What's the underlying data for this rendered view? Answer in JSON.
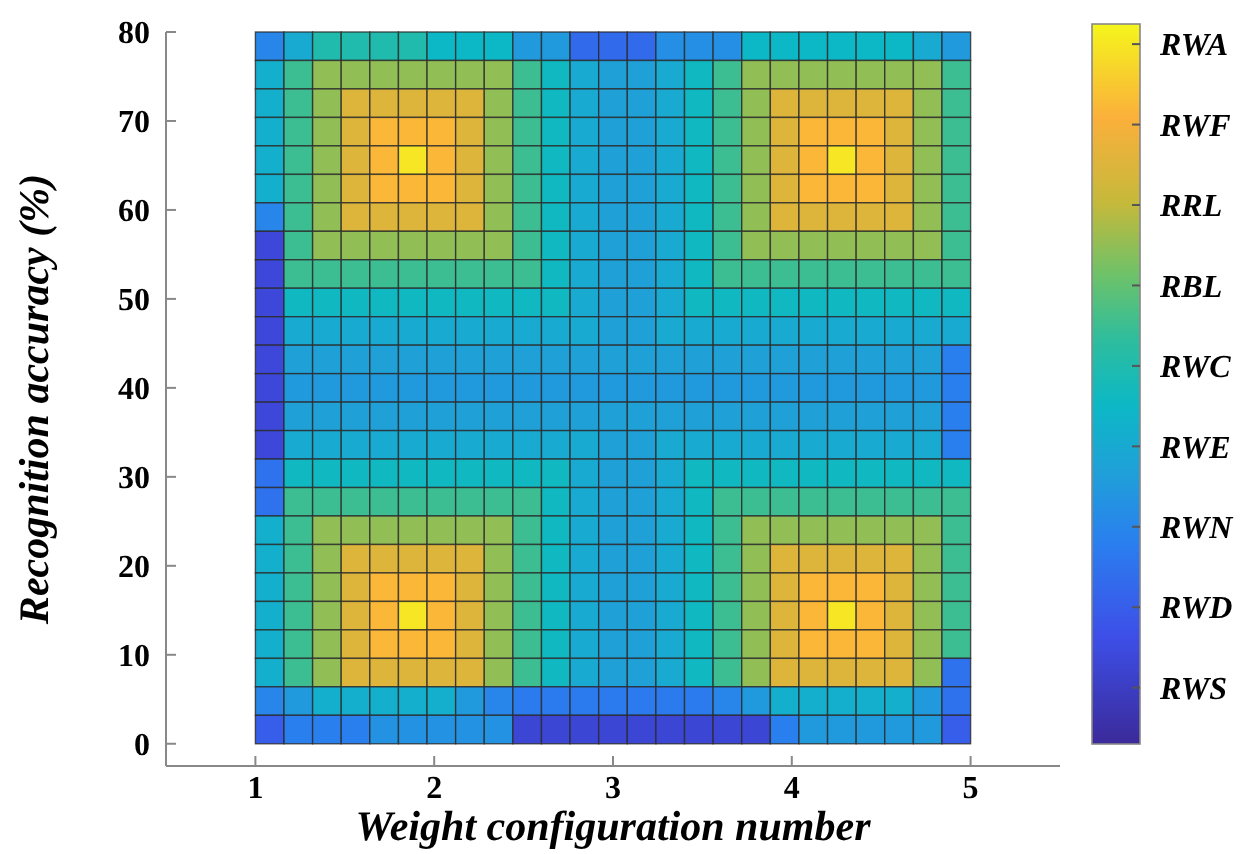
{
  "chart_data": {
    "type": "heatmap",
    "xlabel": "Weight configuration number",
    "ylabel": "Recognition accuracy (%)",
    "x": [
      1.08,
      1.24,
      1.4,
      1.56,
      1.72,
      1.88,
      2.04,
      2.2,
      2.36,
      2.52,
      2.68,
      2.84,
      3.0,
      3.16,
      3.32,
      3.48,
      3.64,
      3.8,
      3.96,
      4.12,
      4.28,
      4.44,
      4.6,
      4.76,
      4.92
    ],
    "y": [
      78.4,
      75.2,
      72.0,
      68.8,
      65.6,
      62.4,
      59.2,
      56.0,
      52.8,
      49.6,
      46.4,
      43.2,
      40.0,
      36.8,
      33.6,
      30.4,
      27.2,
      24.0,
      20.8,
      17.6,
      14.4,
      11.2,
      8.0,
      4.8,
      1.6
    ],
    "xlim": [
      0.5,
      5.5
    ],
    "xticks": [
      1,
      2,
      3,
      4,
      5
    ],
    "ylim": [
      -2.5,
      80
    ],
    "yticks": [
      0,
      10,
      20,
      30,
      40,
      50,
      60,
      70,
      80
    ],
    "clim": [
      0.3,
      9.25
    ],
    "cticks": [
      {
        "value": 1,
        "label": "RWS"
      },
      {
        "value": 2,
        "label": "RWD"
      },
      {
        "value": 3,
        "label": "RWN"
      },
      {
        "value": 4,
        "label": "RWE"
      },
      {
        "value": 5,
        "label": "RWC"
      },
      {
        "value": 6,
        "label": "RBL"
      },
      {
        "value": 7,
        "label": "RRL"
      },
      {
        "value": 8,
        "label": "RWF"
      },
      {
        "value": 9,
        "label": "RWA"
      }
    ],
    "cells": [
      [
        3.0,
        4.0,
        5.0,
        5.0,
        5.0,
        5.0,
        4.5,
        4.5,
        4.5,
        3.5,
        3.5,
        2.3,
        2.3,
        2.3,
        3.2,
        3.2,
        3.2,
        4.5,
        4.5,
        4.5,
        4.5,
        4.5,
        4.5,
        4.0,
        3.5
      ],
      [
        4.2,
        5.5,
        6.5,
        6.5,
        6.5,
        6.5,
        6.5,
        6.5,
        6.5,
        5.5,
        4.6,
        4.0,
        3.7,
        3.7,
        4.0,
        4.6,
        5.5,
        6.5,
        6.5,
        6.5,
        6.5,
        6.5,
        6.5,
        6.5,
        5.5
      ],
      [
        4.2,
        5.5,
        6.5,
        7.5,
        7.5,
        7.5,
        7.5,
        7.5,
        6.5,
        5.5,
        4.6,
        4.0,
        3.7,
        3.7,
        4.0,
        4.6,
        5.5,
        6.5,
        7.5,
        7.5,
        7.5,
        7.5,
        7.5,
        6.5,
        5.5
      ],
      [
        4.2,
        5.5,
        6.5,
        7.5,
        8.2,
        8.2,
        8.2,
        7.5,
        6.5,
        5.5,
        4.6,
        4.0,
        3.7,
        3.7,
        4.0,
        4.6,
        5.5,
        6.5,
        7.5,
        8.2,
        8.2,
        8.2,
        7.5,
        6.5,
        5.5
      ],
      [
        4.2,
        5.5,
        6.5,
        7.5,
        8.2,
        9.0,
        8.2,
        7.5,
        6.5,
        5.5,
        4.6,
        4.0,
        3.7,
        3.7,
        4.0,
        4.6,
        5.5,
        6.5,
        7.5,
        8.2,
        9.0,
        8.2,
        7.5,
        6.5,
        5.5
      ],
      [
        4.2,
        5.5,
        6.5,
        7.5,
        8.2,
        8.2,
        8.2,
        7.5,
        6.5,
        5.5,
        4.6,
        4.0,
        3.7,
        3.7,
        4.0,
        4.6,
        5.5,
        6.5,
        7.5,
        8.2,
        8.2,
        8.2,
        7.5,
        6.5,
        5.5
      ],
      [
        3.0,
        5.5,
        6.5,
        7.5,
        7.5,
        7.5,
        7.5,
        7.5,
        6.5,
        5.5,
        4.6,
        4.0,
        3.7,
        3.7,
        4.0,
        4.6,
        5.5,
        6.5,
        7.5,
        7.5,
        7.5,
        7.5,
        7.5,
        6.5,
        5.5
      ],
      [
        1.4,
        5.5,
        6.5,
        6.5,
        6.5,
        6.5,
        6.5,
        6.5,
        6.5,
        5.5,
        4.6,
        4.0,
        3.7,
        3.7,
        4.0,
        4.6,
        5.5,
        6.5,
        6.5,
        6.5,
        6.5,
        6.5,
        6.5,
        6.5,
        5.5
      ],
      [
        1.4,
        5.5,
        5.5,
        5.5,
        5.5,
        5.5,
        5.5,
        5.5,
        5.5,
        5.5,
        4.6,
        4.0,
        3.7,
        3.7,
        4.0,
        4.6,
        5.5,
        5.5,
        5.5,
        5.5,
        5.5,
        5.5,
        5.5,
        5.5,
        5.5
      ],
      [
        1.4,
        4.6,
        4.6,
        4.6,
        4.6,
        4.6,
        4.6,
        4.6,
        4.6,
        4.6,
        4.6,
        4.0,
        3.7,
        3.7,
        4.0,
        4.6,
        4.6,
        4.6,
        4.6,
        4.6,
        4.6,
        4.6,
        4.6,
        4.6,
        4.6
      ],
      [
        1.4,
        4.0,
        4.0,
        4.0,
        4.0,
        4.0,
        4.0,
        4.0,
        4.0,
        4.0,
        4.0,
        4.0,
        3.7,
        3.7,
        4.0,
        4.0,
        4.0,
        4.0,
        4.0,
        4.0,
        4.0,
        4.0,
        4.0,
        4.0,
        4.0
      ],
      [
        1.4,
        3.7,
        3.7,
        3.7,
        3.7,
        3.7,
        3.7,
        3.7,
        3.7,
        3.7,
        3.7,
        3.7,
        3.7,
        3.7,
        3.7,
        3.7,
        3.7,
        3.7,
        3.7,
        3.7,
        3.7,
        3.7,
        3.7,
        3.7,
        2.8
      ],
      [
        1.4,
        3.5,
        3.5,
        3.5,
        3.5,
        3.5,
        3.5,
        3.5,
        3.5,
        3.5,
        3.5,
        3.5,
        3.5,
        3.5,
        3.5,
        3.5,
        3.5,
        3.5,
        3.5,
        3.5,
        3.5,
        3.5,
        3.5,
        3.5,
        2.8
      ],
      [
        1.4,
        3.7,
        3.7,
        3.7,
        3.7,
        3.7,
        3.7,
        3.7,
        3.7,
        3.7,
        3.7,
        3.7,
        3.7,
        3.7,
        3.7,
        3.7,
        3.7,
        3.7,
        3.7,
        3.7,
        3.7,
        3.7,
        3.7,
        3.7,
        2.8
      ],
      [
        1.4,
        4.0,
        4.0,
        4.0,
        4.0,
        4.0,
        4.0,
        4.0,
        4.0,
        4.0,
        4.0,
        4.0,
        3.7,
        3.7,
        4.0,
        4.0,
        4.0,
        4.0,
        4.0,
        4.0,
        4.0,
        4.0,
        4.0,
        4.0,
        2.8
      ],
      [
        2.5,
        4.6,
        4.6,
        4.6,
        4.6,
        4.6,
        4.6,
        4.6,
        4.6,
        4.6,
        4.6,
        4.0,
        3.7,
        3.7,
        4.0,
        4.6,
        4.6,
        4.6,
        4.6,
        4.6,
        4.6,
        4.6,
        4.6,
        4.6,
        4.6
      ],
      [
        2.5,
        5.5,
        5.5,
        5.5,
        5.5,
        5.5,
        5.5,
        5.5,
        5.5,
        5.5,
        4.6,
        4.0,
        3.7,
        3.7,
        4.0,
        4.6,
        5.5,
        5.5,
        5.5,
        5.5,
        5.5,
        5.5,
        5.5,
        5.5,
        5.5
      ],
      [
        4.2,
        5.5,
        6.5,
        6.5,
        6.5,
        6.5,
        6.5,
        6.5,
        6.5,
        5.5,
        4.6,
        4.0,
        3.7,
        3.7,
        4.0,
        4.6,
        5.5,
        6.5,
        6.5,
        6.5,
        6.5,
        6.5,
        6.5,
        6.5,
        5.5
      ],
      [
        4.2,
        5.5,
        6.5,
        7.5,
        7.5,
        7.5,
        7.5,
        7.5,
        6.5,
        5.5,
        4.6,
        4.0,
        3.7,
        3.7,
        4.0,
        4.6,
        5.5,
        6.5,
        7.5,
        7.5,
        7.5,
        7.5,
        7.5,
        6.5,
        5.5
      ],
      [
        4.2,
        5.5,
        6.5,
        7.5,
        8.2,
        8.2,
        8.2,
        7.5,
        6.5,
        5.5,
        4.6,
        4.0,
        3.7,
        3.7,
        4.0,
        4.6,
        5.5,
        6.5,
        7.5,
        8.2,
        8.2,
        8.2,
        7.5,
        6.5,
        5.5
      ],
      [
        4.2,
        5.5,
        6.5,
        7.5,
        8.2,
        9.0,
        8.2,
        7.5,
        6.5,
        5.5,
        4.6,
        4.0,
        3.7,
        3.7,
        4.0,
        4.6,
        5.5,
        6.5,
        7.5,
        8.2,
        9.0,
        8.2,
        7.5,
        6.5,
        5.5
      ],
      [
        4.2,
        5.5,
        6.5,
        7.5,
        8.2,
        8.2,
        8.2,
        7.5,
        6.5,
        5.5,
        4.6,
        4.0,
        3.7,
        3.7,
        4.0,
        4.6,
        5.5,
        6.5,
        7.5,
        8.2,
        8.2,
        8.2,
        7.5,
        6.5,
        5.5
      ],
      [
        4.2,
        5.5,
        6.5,
        7.5,
        7.5,
        7.5,
        7.5,
        7.5,
        6.5,
        5.5,
        4.6,
        4.0,
        3.7,
        3.7,
        4.0,
        4.6,
        5.5,
        6.5,
        7.5,
        7.5,
        7.5,
        7.5,
        7.5,
        6.5,
        2.5
      ],
      [
        3.0,
        3.5,
        4.2,
        4.2,
        4.2,
        4.2,
        4.2,
        3.5,
        3.0,
        2.7,
        2.7,
        2.7,
        2.7,
        2.7,
        2.7,
        2.7,
        3.0,
        3.5,
        4.2,
        4.2,
        4.2,
        4.2,
        4.2,
        3.5,
        2.5
      ],
      [
        2.0,
        2.8,
        2.8,
        2.8,
        3.3,
        3.3,
        3.3,
        3.3,
        3.3,
        1.3,
        1.3,
        1.3,
        1.3,
        1.3,
        1.3,
        1.3,
        1.3,
        1.3,
        2.8,
        3.5,
        3.5,
        3.5,
        3.5,
        3.5,
        2.0
      ]
    ]
  }
}
